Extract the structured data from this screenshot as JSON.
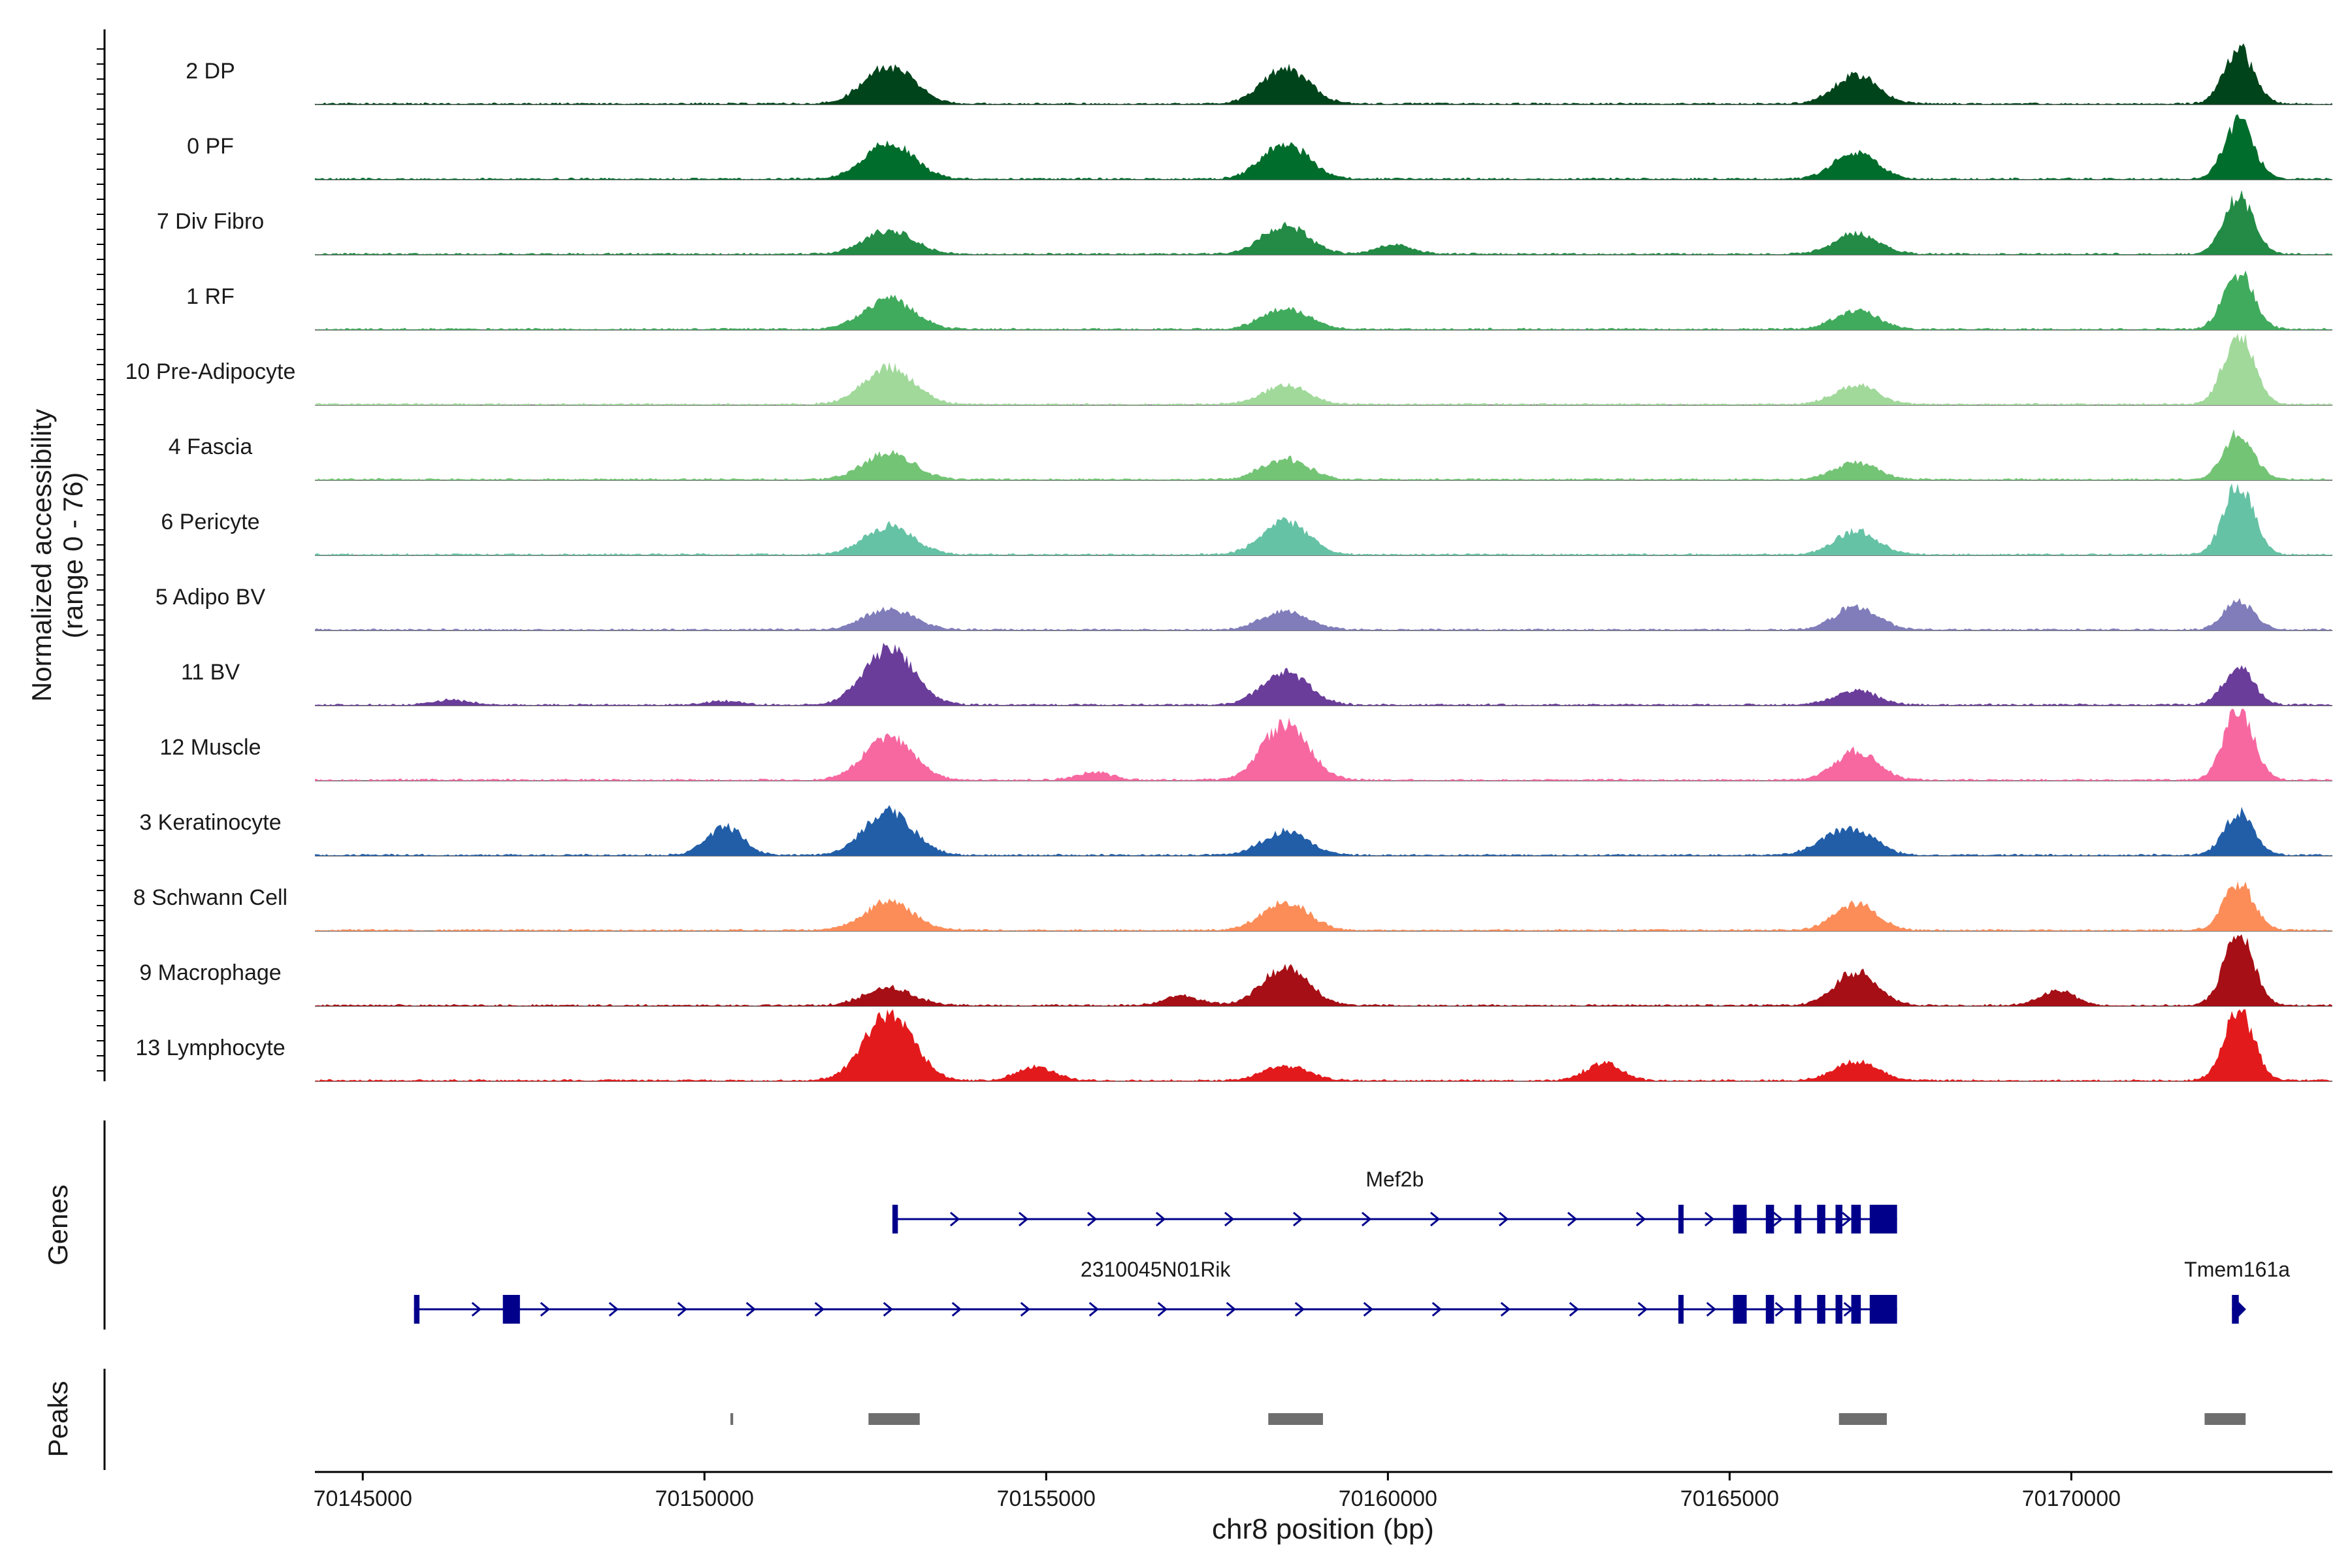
{
  "chart_data": {
    "type": "area",
    "figure": "genome-coverage-track",
    "region": {
      "chrom": "chr8",
      "start": 70144300,
      "end": 70173820
    },
    "xaxis": {
      "label": "chr8 position (bp)",
      "ticks": [
        70145000,
        70150000,
        70155000,
        70160000,
        70165000,
        70170000
      ],
      "tick_labels": [
        "70145000",
        "70150000",
        "70155000",
        "70160000",
        "70165000",
        "70170000"
      ]
    },
    "coverage": {
      "ylabel_line1": "Normalized accessibility",
      "ylabel_line2": "(range 0 - 76)",
      "ylim": [
        0,
        76
      ],
      "peak_positions": [
        70152700,
        70158500,
        70166850,
        70172450
      ],
      "tracks": [
        {
          "name": "2 DP",
          "color": "#00441b",
          "peaks": [
            40,
            38,
            30,
            58
          ],
          "extra": []
        },
        {
          "name": "0 PF",
          "color": "#006d2c",
          "peaks": [
            38,
            38,
            28,
            60
          ],
          "extra": []
        },
        {
          "name": "7 Div Fibro",
          "color": "#238b45",
          "peaks": [
            25,
            30,
            22,
            60
          ],
          "extra": [
            [
              70160100,
              10
            ]
          ]
        },
        {
          "name": "1 RF",
          "color": "#41ab5d",
          "peaks": [
            32,
            22,
            20,
            60
          ],
          "extra": []
        },
        {
          "name": "10 Pre-Adipocyte",
          "color": "#a1d99b",
          "peaks": [
            40,
            20,
            20,
            76
          ],
          "extra": []
        },
        {
          "name": "4 Fascia",
          "color": "#74c476",
          "peaks": [
            28,
            22,
            18,
            50
          ],
          "extra": []
        },
        {
          "name": "6 Pericyte",
          "color": "#66c2a4",
          "peaks": [
            30,
            35,
            25,
            76
          ],
          "extra": []
        },
        {
          "name": "5 Adipo BV",
          "color": "#807dba",
          "peaks": [
            22,
            20,
            25,
            30
          ],
          "extra": []
        },
        {
          "name": "11 BV",
          "color": "#6a3d9a",
          "peaks": [
            60,
            35,
            15,
            40
          ],
          "extra": [
            [
              70146300,
              5
            ],
            [
              70150300,
              4
            ]
          ]
        },
        {
          "name": "12 Muscle",
          "color": "#f768a1",
          "peaks": [
            45,
            60,
            30,
            76
          ],
          "extra": [
            [
              70155700,
              8
            ]
          ]
        },
        {
          "name": "3 Keratinocyte",
          "color": "#225ea8",
          "peaks": [
            45,
            25,
            25,
            45
          ],
          "extra": [
            [
              70150300,
              30
            ],
            [
              70166400,
              10
            ]
          ]
        },
        {
          "name": "8 Schwann Cell",
          "color": "#fc8d59",
          "peaks": [
            30,
            30,
            28,
            50
          ],
          "extra": []
        },
        {
          "name": "9 Macrophage",
          "color": "#a50f15",
          "peaks": [
            18,
            40,
            35,
            76
          ],
          "extra": [
            [
              70157000,
              10
            ],
            [
              70169800,
              15
            ]
          ]
        },
        {
          "name": "13 Lymphocyte",
          "color": "#e31a1c",
          "peaks": [
            70,
            15,
            20,
            76
          ],
          "extra": [
            [
              70154850,
              15
            ],
            [
              70163150,
              18
            ]
          ]
        }
      ]
    },
    "genes": {
      "label": "Genes",
      "color": "#00008b",
      "items": [
        {
          "name": "Mef2b",
          "strand": "+",
          "start": 70152750,
          "end": 70167450,
          "exons": [
            [
              70152750,
              70152830
            ],
            [
              70164250,
              70164300
            ],
            [
              70165050,
              70165250
            ],
            [
              70165530,
              70165650
            ],
            [
              70165950,
              70166050
            ],
            [
              70166280,
              70166400
            ],
            [
              70166550,
              70166650
            ],
            [
              70166780,
              70166920
            ],
            [
              70167050,
              70167450
            ]
          ]
        },
        {
          "name": "2310045N01Rik",
          "strand": "+",
          "start": 70145750,
          "end": 70167450,
          "exons": [
            [
              70145750,
              70145830
            ],
            [
              70147050,
              70147300
            ],
            [
              70164250,
              70164300
            ],
            [
              70165050,
              70165250
            ],
            [
              70165530,
              70165650
            ],
            [
              70165950,
              70166050
            ],
            [
              70166280,
              70166400
            ],
            [
              70166550,
              70166650
            ],
            [
              70166780,
              70166920
            ],
            [
              70167050,
              70167450
            ]
          ]
        },
        {
          "name": "Tmem161a",
          "strand": "+",
          "start": 70172350,
          "end": 70172500,
          "exons": [
            [
              70172350,
              70172450
            ]
          ]
        }
      ]
    },
    "peaks": {
      "label": "Peaks",
      "color": "#6e6e6e",
      "regions": [
        [
          70150380,
          70150420
        ],
        [
          70152400,
          70153150
        ],
        [
          70158250,
          70159050
        ],
        [
          70166600,
          70167300
        ],
        [
          70171950,
          70172550
        ]
      ]
    }
  }
}
